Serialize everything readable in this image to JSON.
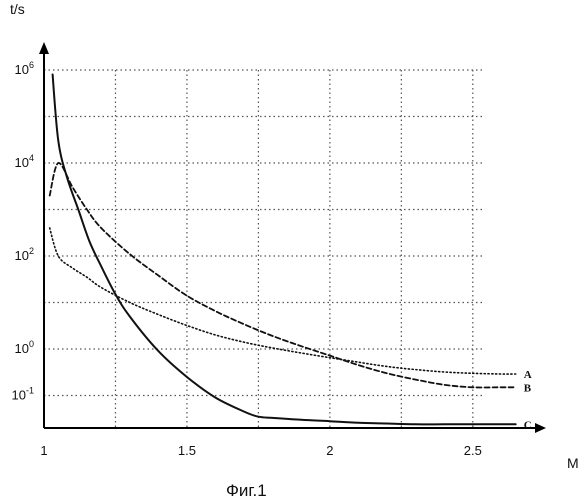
{
  "chart_data": {
    "type": "line",
    "title": "",
    "caption": "Фиг.1",
    "xlabel": "M",
    "ylabel": "t/s",
    "y_scale": "log",
    "xlim": [
      1.0,
      2.7
    ],
    "ylim": [
      0.02,
      2000000
    ],
    "x_ticks": [
      {
        "value": 1.0,
        "label": "1"
      },
      {
        "value": 1.5,
        "label": "1.5"
      },
      {
        "value": 2.0,
        "label": "2"
      },
      {
        "value": 2.5,
        "label": "2.5"
      }
    ],
    "y_ticks": [
      {
        "value": 1000000,
        "base": "10",
        "exp": "6"
      },
      {
        "value": 10000,
        "base": "10",
        "exp": "4"
      },
      {
        "value": 100,
        "base": "10",
        "exp": "2"
      },
      {
        "value": 1,
        "base": "10",
        "exp": "0"
      },
      {
        "value": 0.1,
        "base": "10",
        "exp": "-1"
      }
    ],
    "x_gridlines": [
      1.25,
      1.5,
      1.75,
      2.0,
      2.25,
      2.5
    ],
    "y_gridlines": [
      1000000,
      100000,
      10000,
      1000,
      100,
      10,
      1,
      0.1
    ],
    "grid": true,
    "series": [
      {
        "name": "A",
        "style": "dotted",
        "x": [
          1.02,
          1.05,
          1.1,
          1.15,
          1.2,
          1.3,
          1.4,
          1.5,
          1.6,
          1.7,
          1.8,
          1.9,
          2.0,
          2.1,
          2.2,
          2.3,
          2.4,
          2.5,
          2.6,
          2.65
        ],
        "y": [
          400,
          100,
          55,
          35,
          21,
          10,
          5.5,
          3.2,
          2,
          1.4,
          1.05,
          0.82,
          0.65,
          0.52,
          0.42,
          0.36,
          0.32,
          0.3,
          0.29,
          0.29
        ]
      },
      {
        "name": "B",
        "style": "dashed",
        "x": [
          1.02,
          1.05,
          1.1,
          1.15,
          1.2,
          1.3,
          1.4,
          1.5,
          1.6,
          1.7,
          1.8,
          1.9,
          2.0,
          2.1,
          2.2,
          2.3,
          2.4,
          2.5,
          2.6,
          2.65
        ],
        "y": [
          2000,
          10000,
          3000,
          1000,
          400,
          110,
          38,
          14,
          6.5,
          3.4,
          1.9,
          1.15,
          0.72,
          0.45,
          0.3,
          0.22,
          0.17,
          0.15,
          0.15,
          0.15
        ]
      },
      {
        "name": "C",
        "style": "solid",
        "x": [
          1.03,
          1.05,
          1.08,
          1.12,
          1.16,
          1.2,
          1.25,
          1.3,
          1.4,
          1.5,
          1.6,
          1.7,
          1.75,
          1.8,
          1.9,
          2.0,
          2.1,
          2.2,
          2.3,
          2.4,
          2.5,
          2.6,
          2.65
        ],
        "y": [
          800000,
          30000,
          5000,
          1000,
          200,
          60,
          15,
          5,
          0.9,
          0.25,
          0.09,
          0.045,
          0.035,
          0.033,
          0.03,
          0.028,
          0.026,
          0.025,
          0.024,
          0.024,
          0.024,
          0.024,
          0.024
        ]
      }
    ]
  }
}
